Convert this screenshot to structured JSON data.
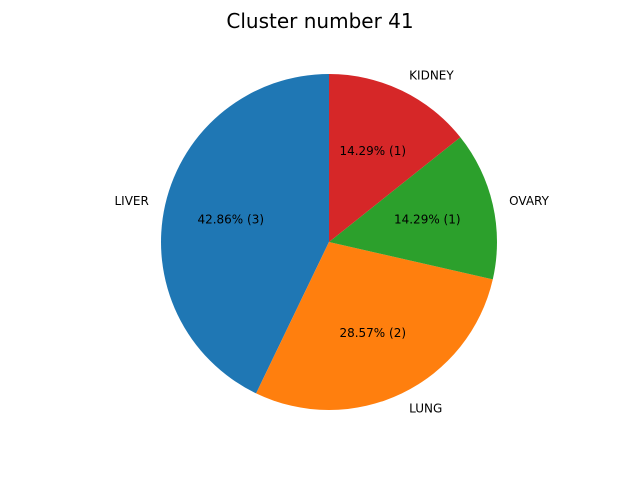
{
  "chart_data": {
    "type": "pie",
    "title": "Cluster number 41",
    "start_angle": 90,
    "direction": "counterclockwise",
    "slices": [
      {
        "label": "LIVER",
        "count": 3,
        "percent_label": "42.86%  (3)",
        "color": "#1f77b4"
      },
      {
        "label": "LUNG",
        "count": 2,
        "percent_label": "28.57%  (2)",
        "color": "#ff7f0e"
      },
      {
        "label": "OVARY",
        "count": 1,
        "percent_label": "14.29%  (1)",
        "color": "#2ca02c"
      },
      {
        "label": "KIDNEY",
        "count": 1,
        "percent_label": "14.29%  (1)",
        "color": "#d62728"
      }
    ]
  }
}
